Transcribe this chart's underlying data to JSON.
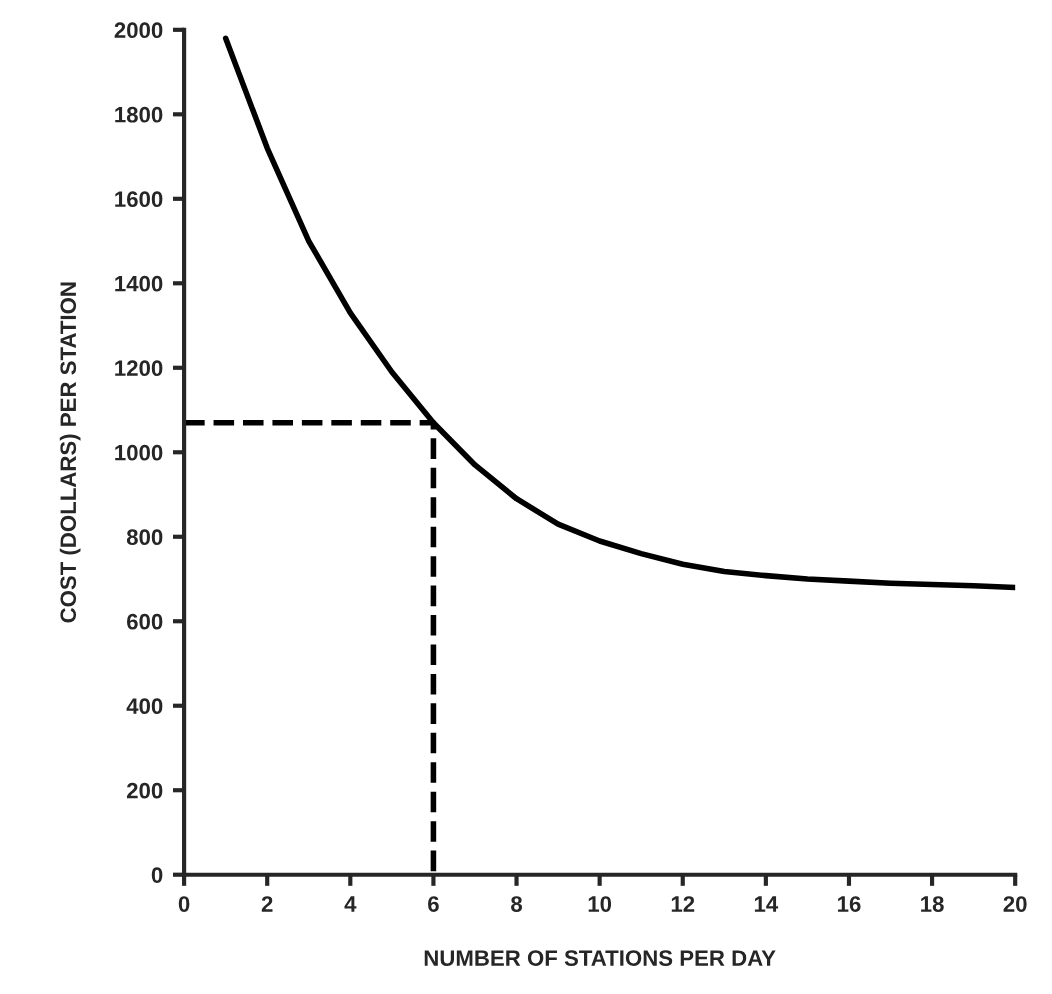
{
  "chart_data": {
    "type": "line",
    "xlabel": "NUMBER OF STATIONS PER DAY",
    "ylabel": "COST (DOLLARS) PER STATION",
    "series": [
      {
        "color": "#000000",
        "line_style": "solid",
        "x": [
          1,
          2,
          3,
          4,
          5,
          6,
          7,
          8,
          9,
          10,
          11,
          12,
          13,
          14,
          15,
          16,
          17,
          18,
          19,
          20
        ],
        "values": [
          1980,
          1720,
          1500,
          1330,
          1190,
          1070,
          970,
          890,
          830,
          790,
          760,
          735,
          718,
          708,
          700,
          695,
          690,
          687,
          684,
          680
        ]
      },
      {
        "color": "#000000",
        "line_style": "dashed",
        "x": [
          0,
          6,
          6
        ],
        "values": [
          1070,
          1070,
          0
        ]
      }
    ],
    "xlim": [
      0,
      20
    ],
    "ylim": [
      0,
      2000
    ],
    "xticks": [
      0,
      2,
      4,
      6,
      8,
      10,
      12,
      14,
      16,
      18,
      20
    ],
    "yticks": [
      0,
      200,
      400,
      600,
      800,
      1000,
      1200,
      1400,
      1600,
      1800,
      2000
    ],
    "grid": false,
    "legend": false
  }
}
